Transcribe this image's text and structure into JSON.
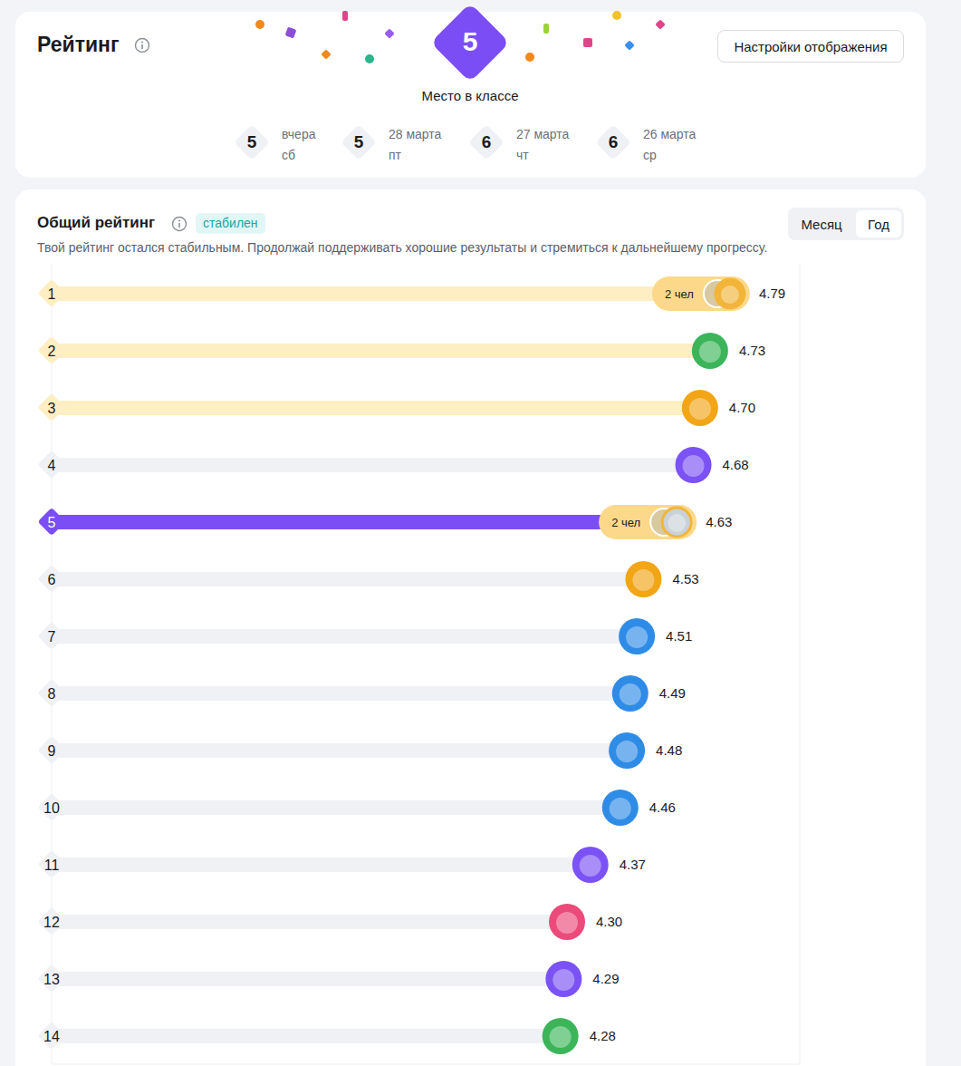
{
  "header": {
    "title": "Рейтинг",
    "place": 5,
    "place_caption": "Место в классе",
    "button": "Настройки отображения",
    "history": [
      {
        "place": 5,
        "date": "вчера",
        "weekday": "сб"
      },
      {
        "place": 5,
        "date": "28 марта",
        "weekday": "пт"
      },
      {
        "place": 6,
        "date": "27 марта",
        "weekday": "чт"
      },
      {
        "place": 6,
        "date": "26 марта",
        "weekday": "ср"
      }
    ]
  },
  "section": {
    "title": "Общий рейтинг",
    "badge": "стабилен",
    "description": "Твой рейтинг остался стабильным. Продолжай поддерживать хорошие результаты и стремиться к дальнейшему прогрессу.",
    "tabs": [
      "Месяц",
      "Год"
    ],
    "active_tab": "Год"
  },
  "chart_data": {
    "type": "bar",
    "orientation": "horizontal",
    "categories": [
      "1",
      "2",
      "3",
      "4",
      "5",
      "6",
      "7",
      "8",
      "9",
      "10",
      "11",
      "12",
      "13",
      "14"
    ],
    "values": [
      4.79,
      4.73,
      4.7,
      4.68,
      4.63,
      4.53,
      4.51,
      4.49,
      4.48,
      4.46,
      4.37,
      4.3,
      4.29,
      4.28
    ],
    "value_labels": [
      "4.79",
      "4.73",
      "4.70",
      "4.68",
      "4.63",
      "4.53",
      "4.51",
      "4.49",
      "4.48",
      "4.46",
      "4.37",
      "4.30",
      "4.29",
      "4.28"
    ],
    "group_labels": [
      "2 чел",
      null,
      null,
      null,
      "2 чел",
      null,
      null,
      null,
      null,
      null,
      null,
      null,
      null,
      null
    ],
    "colors": [
      "#fdeec3",
      "#fdeec3",
      "#fdeec3",
      "#f0f1f5",
      "#7b4ef5",
      "#f0f1f5",
      "#f0f1f5",
      "#f0f1f5",
      "#f0f1f5",
      "#f0f1f5",
      "#f0f1f5",
      "#f0f1f5",
      "#f0f1f5",
      "#f0f1f5"
    ],
    "xlim": [
      2.75,
      5
    ],
    "xticks": [
      3,
      3.5,
      4,
      4.5,
      5
    ],
    "grid": true,
    "tick_labels": "y",
    "data_labels": true
  }
}
